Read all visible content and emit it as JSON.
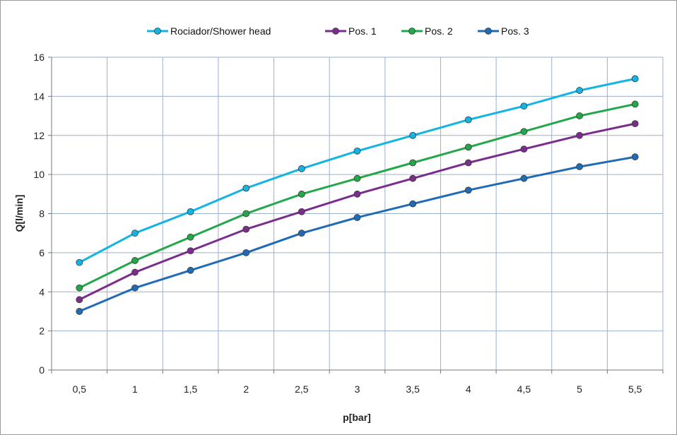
{
  "chart_data": {
    "type": "line",
    "title": "",
    "xlabel": "p[bar]",
    "ylabel": "Q[l/min]",
    "categories": [
      "0,5",
      "1",
      "1,5",
      "2",
      "2,5",
      "3",
      "3,5",
      "4",
      "4,5",
      "5",
      "5,5"
    ],
    "x": [
      0.5,
      1,
      1.5,
      2,
      2.5,
      3,
      3.5,
      4,
      4.5,
      5,
      5.5
    ],
    "ylim": [
      0,
      16
    ],
    "yticks": [
      0,
      2,
      4,
      6,
      8,
      10,
      12,
      14,
      16
    ],
    "grid": true,
    "legend_position": "top",
    "series": [
      {
        "name": "Rociador/Shower head",
        "color": "#12b4e3",
        "values": [
          5.5,
          7.0,
          8.1,
          9.3,
          10.3,
          11.2,
          12.0,
          12.8,
          13.5,
          14.3,
          14.9
        ]
      },
      {
        "name": "Pos. 1",
        "color": "#7b2d8e",
        "values": [
          3.6,
          5.0,
          6.1,
          7.2,
          8.1,
          9.0,
          9.8,
          10.6,
          11.3,
          12.0,
          12.6
        ]
      },
      {
        "name": "Pos. 2",
        "color": "#22a84a",
        "values": [
          4.2,
          5.6,
          6.8,
          8.0,
          9.0,
          9.8,
          10.6,
          11.4,
          12.2,
          13.0,
          13.6
        ]
      },
      {
        "name": "Pos. 3",
        "color": "#1f6bb5",
        "values": [
          3.0,
          4.2,
          5.1,
          6.0,
          7.0,
          7.8,
          8.5,
          9.2,
          9.8,
          10.4,
          10.9
        ]
      }
    ]
  }
}
